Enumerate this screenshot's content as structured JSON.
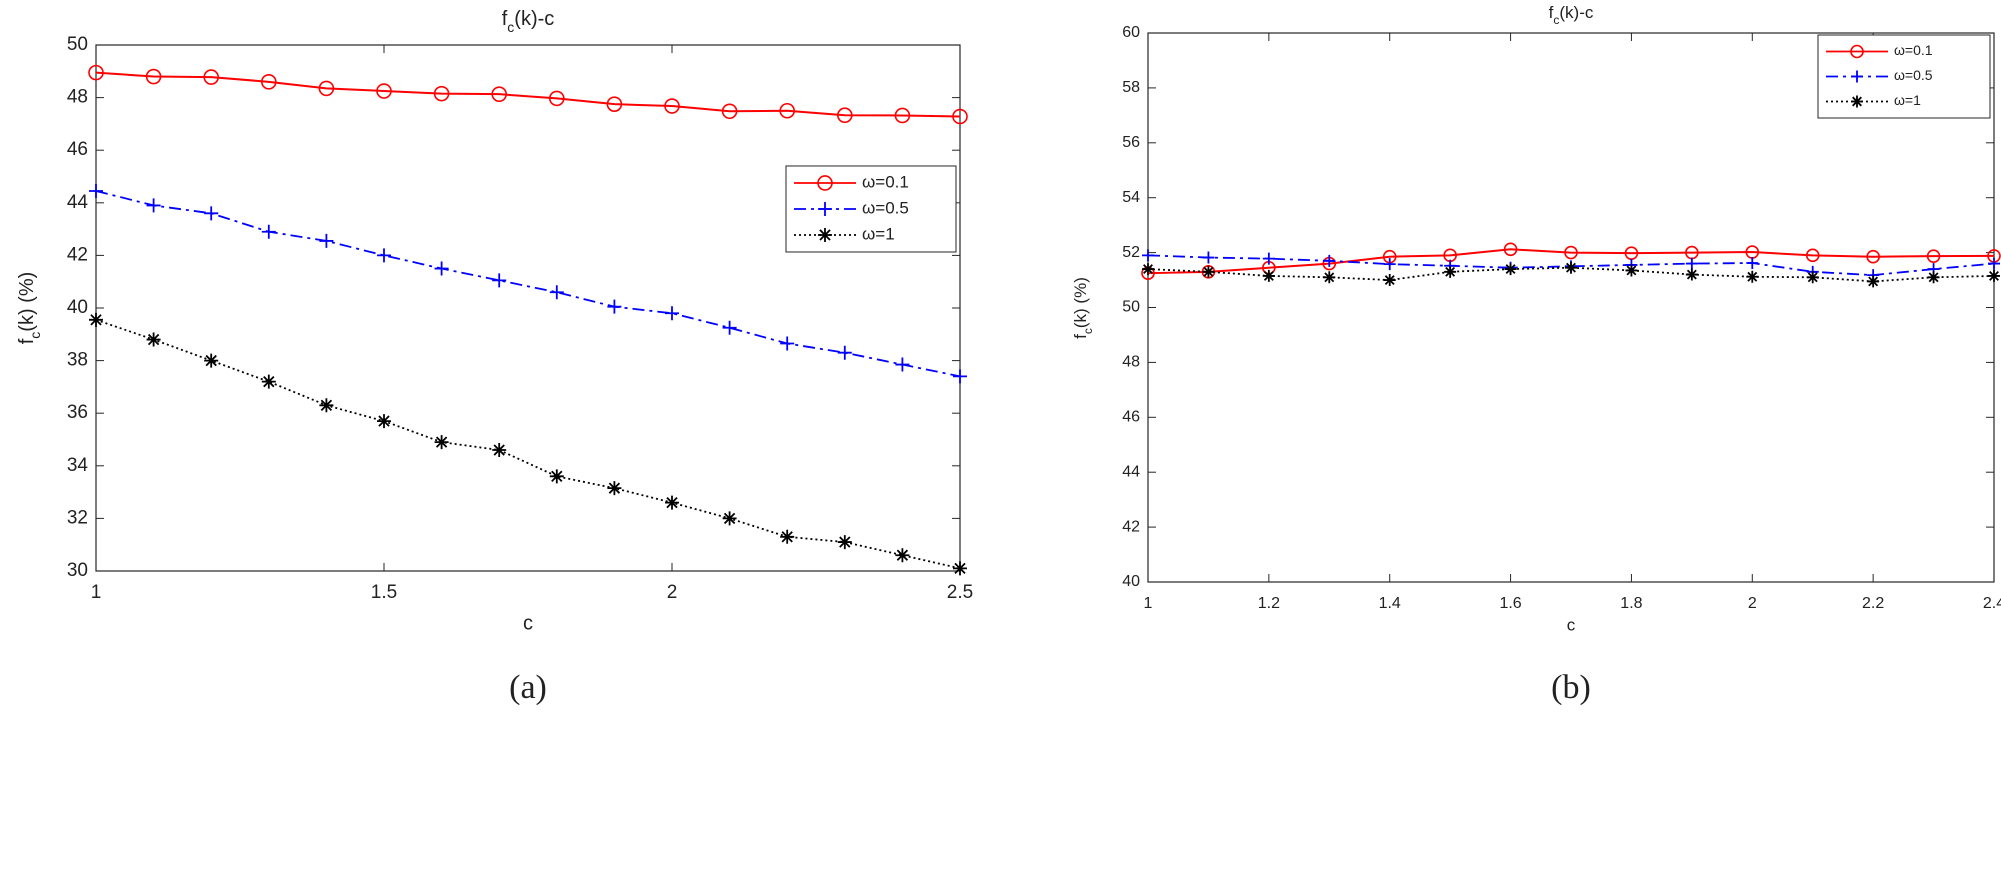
{
  "chart_data": [
    {
      "type": "line",
      "title": [
        "f",
        "c",
        "(k)-c"
      ],
      "xlabel": "c",
      "ylabel": [
        "f",
        "c",
        "(k) (%)"
      ],
      "caption": "(a)",
      "x": [
        1,
        1.1,
        1.2,
        1.3,
        1.4,
        1.5,
        1.6,
        1.7,
        1.8,
        1.9,
        2,
        2.1,
        2.2,
        2.3,
        2.4,
        2.5
      ],
      "xlim": [
        1,
        2.5
      ],
      "xticks": [
        1,
        1.5,
        2,
        2.5
      ],
      "ylim": [
        30,
        50
      ],
      "yticks": [
        30,
        32,
        34,
        36,
        38,
        40,
        42,
        44,
        46,
        48,
        50
      ],
      "legend": "right",
      "series": [
        {
          "name": "ω=0.1",
          "color": "#ff0000",
          "marker": "circle",
          "linestyle": "solid",
          "values": [
            48.95,
            48.8,
            48.78,
            48.6,
            48.35,
            48.25,
            48.15,
            48.13,
            47.97,
            47.75,
            47.68,
            47.48,
            47.5,
            47.33,
            47.32,
            47.28
          ]
        },
        {
          "name": "ω=0.5",
          "color": "#0000ff",
          "marker": "plus",
          "linestyle": "dashdot",
          "values": [
            44.45,
            43.9,
            43.6,
            42.9,
            42.55,
            42.0,
            41.5,
            41.05,
            40.6,
            40.05,
            39.8,
            39.25,
            38.65,
            38.3,
            37.85,
            37.4
          ]
        },
        {
          "name": "ω=1",
          "color": "#000000",
          "marker": "star",
          "linestyle": "dotted",
          "values": [
            39.55,
            38.8,
            38.0,
            37.2,
            36.3,
            35.7,
            34.9,
            34.6,
            33.6,
            33.15,
            32.6,
            32.0,
            31.3,
            31.1,
            30.6,
            30.1
          ]
        }
      ]
    },
    {
      "type": "line",
      "title": [
        "f",
        "c",
        "(k)-c"
      ],
      "xlabel": "c",
      "ylabel": [
        "f",
        "c",
        "(k) (%)"
      ],
      "caption": "(b)",
      "x": [
        1,
        1.1,
        1.2,
        1.3,
        1.4,
        1.5,
        1.6,
        1.7,
        1.8,
        1.9,
        2,
        2.1,
        2.2,
        2.3,
        2.4
      ],
      "xlim": [
        1,
        2.4
      ],
      "xticks": [
        1,
        1.2,
        1.4,
        1.6,
        1.8,
        2,
        2.2,
        2.4
      ],
      "ylim": [
        40,
        60
      ],
      "yticks": [
        40,
        42,
        44,
        46,
        48,
        50,
        52,
        54,
        56,
        58,
        60
      ],
      "legend": "upper right",
      "series": [
        {
          "name": "ω=0.1",
          "color": "#ff0000",
          "marker": "circle",
          "linestyle": "solid",
          "values": [
            51.25,
            51.3,
            51.45,
            51.6,
            51.85,
            51.9,
            52.12,
            52.0,
            51.98,
            52.0,
            52.02,
            51.9,
            51.85,
            51.87,
            51.88
          ]
        },
        {
          "name": "ω=0.5",
          "color": "#0000ff",
          "marker": "plus",
          "linestyle": "dashdot",
          "values": [
            51.9,
            51.82,
            51.78,
            51.7,
            51.58,
            51.52,
            51.45,
            51.5,
            51.55,
            51.6,
            51.62,
            51.3,
            51.18,
            51.4,
            51.6
          ]
        },
        {
          "name": "ω=1",
          "color": "#000000",
          "marker": "star",
          "linestyle": "dotted",
          "values": [
            51.4,
            51.3,
            51.15,
            51.1,
            51.0,
            51.3,
            51.4,
            51.45,
            51.35,
            51.2,
            51.12,
            51.1,
            50.95,
            51.1,
            51.15
          ]
        }
      ]
    }
  ]
}
